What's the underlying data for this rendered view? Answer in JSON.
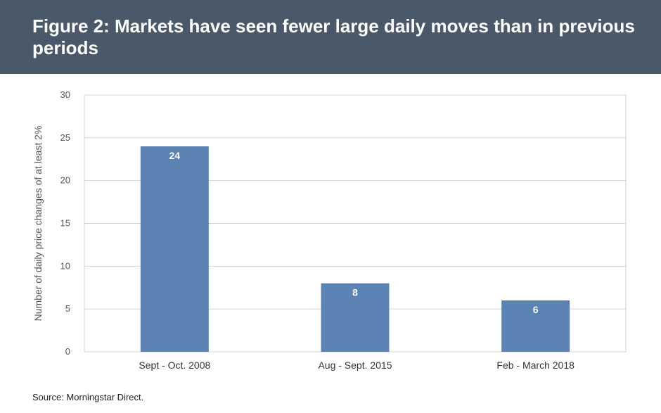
{
  "title": "Figure 2: Markets have seen fewer large daily moves than in previous periods",
  "source": "Source: Morningstar Direct.",
  "chart_data": {
    "type": "bar",
    "categories": [
      "Sept - Oct. 2008",
      "Aug - Sept. 2015",
      "Feb - March 2018"
    ],
    "values": [
      24,
      8,
      6
    ],
    "data_labels": [
      "24",
      "8",
      "6"
    ],
    "title": "",
    "xlabel": "",
    "ylabel": "Number of daily price changes of at least 2%",
    "ylim": [
      0,
      30
    ],
    "yticks": [
      0,
      5,
      10,
      15,
      20,
      25,
      30
    ],
    "grid": true,
    "legend": "none",
    "colors": {
      "bar": "#5b83b3",
      "grid": "#d4d4d4",
      "axis_text": "#555555",
      "label_text": "#ffffff"
    }
  }
}
